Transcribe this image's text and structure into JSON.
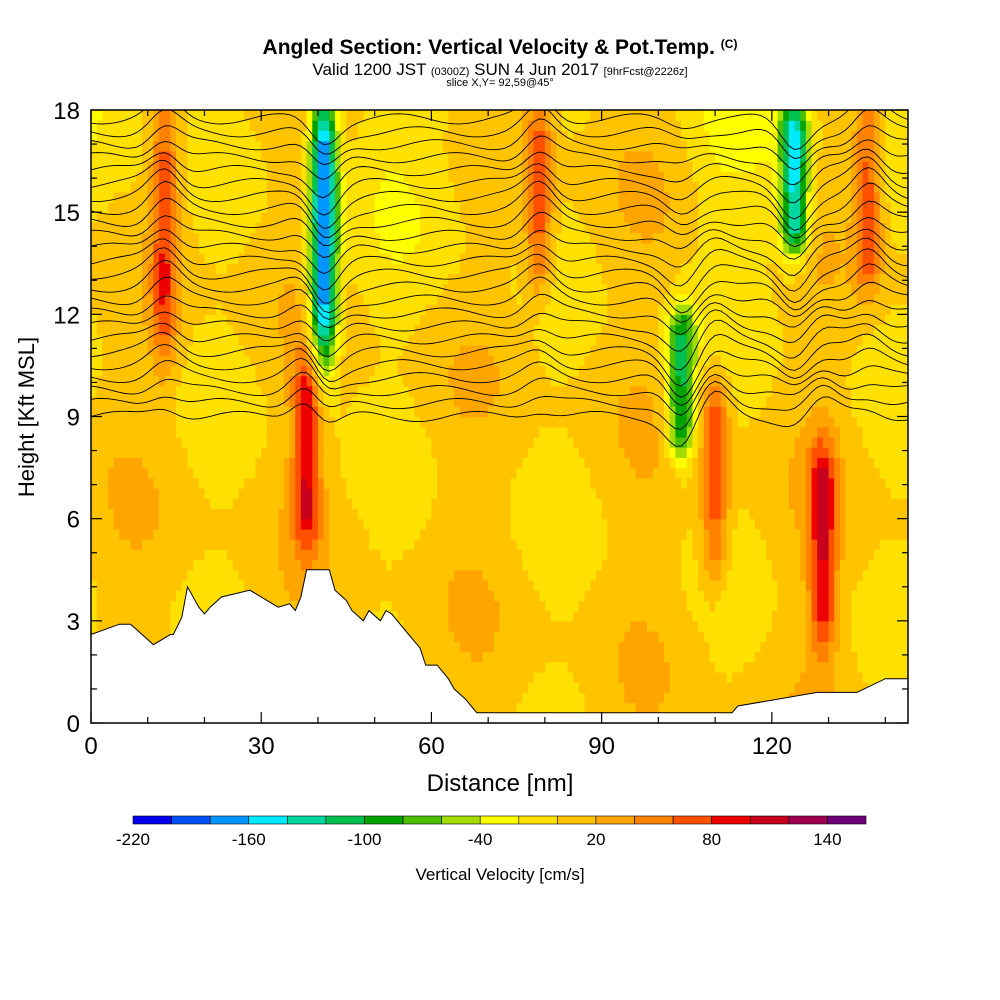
{
  "chart_data": {
    "type": "heatmap",
    "title": "Angled Section: Vertical Velocity & Pot.Temp.",
    "title_unit": "(C)",
    "subtitle": {
      "valid_prefix": "Valid 1200 JST",
      "utc": "(0300Z)",
      "date": "SUN 4 Jun 2017",
      "forecast": "[9hrFcst@2226z]"
    },
    "slice_label": "slice X,Y= 92,59@45°",
    "xlabel": "Distance [nm]",
    "ylabel": "Height [Kft MSL]",
    "xlim": [
      0,
      144
    ],
    "ylim": [
      0,
      18
    ],
    "xticks": [
      0,
      30,
      60,
      90,
      120
    ],
    "yticks": [
      0,
      3,
      6,
      9,
      12,
      15,
      18
    ],
    "colorbar": {
      "label": "Vertical Velocity [cm/s]",
      "tick_labels": [
        -220,
        -160,
        -100,
        -40,
        20,
        80,
        140
      ],
      "bins": [
        -220,
        -200,
        -180,
        -160,
        -140,
        -120,
        -100,
        -80,
        -60,
        -40,
        -20,
        0,
        20,
        40,
        60,
        80,
        100,
        120,
        140,
        160
      ],
      "colors": [
        "#0000ee",
        "#0050ff",
        "#0096ff",
        "#00eaff",
        "#00d7a0",
        "#00c050",
        "#00a300",
        "#4cbe00",
        "#a2dc00",
        "#ffff00",
        "#ffe100",
        "#ffc300",
        "#ffa500",
        "#ff8200",
        "#ff5000",
        "#ee0000",
        "#c8001e",
        "#a00050",
        "#70007a"
      ]
    },
    "updraft_cores": [
      {
        "x": 13,
        "y_range": [
          11,
          18
        ],
        "value": 80
      },
      {
        "x": 38,
        "y_range": [
          5.5,
          10.5
        ],
        "value": 100
      },
      {
        "x": 79,
        "y_range": [
          13,
          18
        ],
        "value": 80
      },
      {
        "x": 110,
        "y_range": [
          4.5,
          10
        ],
        "value": 80
      },
      {
        "x": 129,
        "y_range": [
          2.5,
          8
        ],
        "value": 100
      },
      {
        "x": 137,
        "y_range": [
          13,
          18
        ],
        "value": 80
      }
    ],
    "downdraft_cores": [
      {
        "x": 41,
        "y_range": [
          11,
          18
        ],
        "value": -180
      },
      {
        "x": 104,
        "y_range": [
          8,
          12
        ],
        "value": -100
      },
      {
        "x": 124,
        "y_range": [
          14,
          18
        ],
        "value": -140
      }
    ],
    "terrain_profile": {
      "x": [
        0,
        5,
        7,
        9,
        11,
        14,
        14.5,
        16,
        17,
        19,
        20,
        21,
        23,
        28,
        33,
        35,
        36,
        37,
        38,
        42,
        43,
        45,
        46,
        48,
        49,
        51,
        52,
        53,
        56,
        58,
        59,
        61,
        63,
        64,
        66,
        67,
        68,
        68.5,
        113,
        114,
        128,
        135,
        140,
        144
      ],
      "y": [
        2.6,
        2.9,
        2.9,
        2.6,
        2.3,
        2.6,
        2.6,
        3.1,
        4.0,
        3.4,
        3.2,
        3.4,
        3.7,
        3.9,
        3.4,
        3.5,
        3.3,
        3.7,
        4.5,
        4.5,
        3.9,
        3.6,
        3.3,
        3.0,
        3.3,
        3.0,
        3.3,
        3.2,
        2.6,
        2.2,
        1.7,
        1.7,
        1.3,
        1.0,
        0.7,
        0.5,
        0.3,
        0.3,
        0.3,
        0.5,
        0.9,
        0.9,
        1.3,
        1.3
      ]
    },
    "grid": false
  }
}
